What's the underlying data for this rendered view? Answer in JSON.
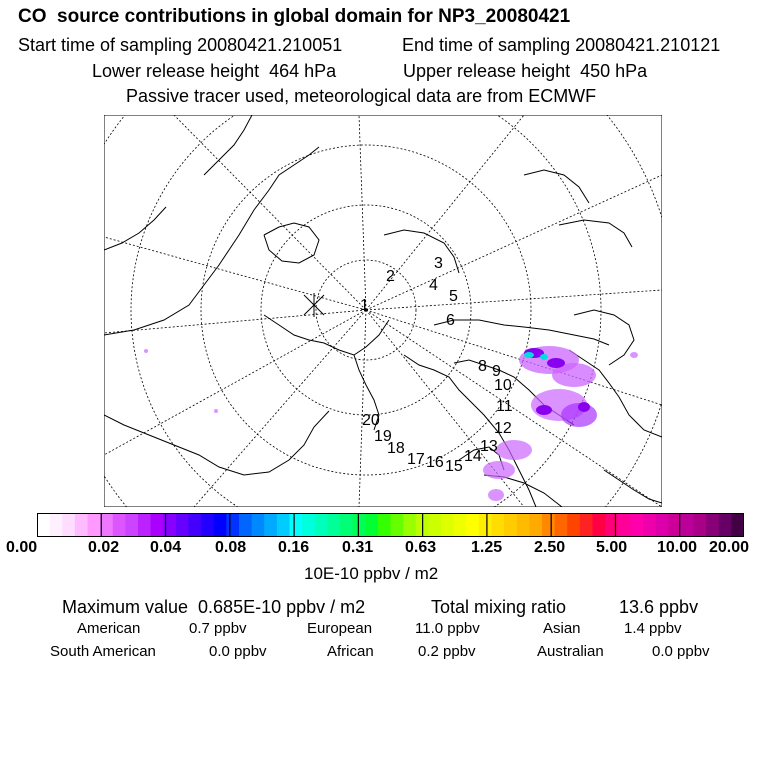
{
  "header": {
    "title": "CO  source contributions in global domain for NP3_20080421",
    "start_time": "Start time of sampling 20080421.210051",
    "end_time": "End time of sampling 20080421.210121",
    "lower_height": "Lower release height  464 hPa",
    "upper_height": "Upper release height  450 hPa",
    "tracer_note": "Passive tracer used, meteorological data are from ECMWF"
  },
  "map": {
    "trajectory_labels": [
      "1",
      "2",
      "3",
      "4",
      "5",
      "6",
      "8",
      "9",
      "10",
      "11",
      "12",
      "13",
      "14",
      "15",
      "16",
      "17",
      "18",
      "19",
      "20"
    ],
    "colors": {
      "coast": "#000000",
      "grid": "#000000",
      "plume_low": "#cc66ff",
      "plume_mid": "#8800ee",
      "plume_high": "#00dddd"
    }
  },
  "colorbar": {
    "labels": [
      "0.00",
      "0.02",
      "0.04",
      "0.08",
      "0.16",
      "0.31",
      "0.63",
      "1.25",
      "2.50",
      "5.00",
      "10.00",
      "20.00"
    ],
    "colors": [
      "#ffffff",
      "#fff0ff",
      "#ffddff",
      "#ffbbff",
      "#ff99ff",
      "#ee77ff",
      "#dd55ff",
      "#cc44ff",
      "#bb22ff",
      "#aa00ff",
      "#8800ff",
      "#6600ff",
      "#4400ff",
      "#2200ff",
      "#0000ff",
      "#0033ff",
      "#0066ff",
      "#0088ff",
      "#00aaff",
      "#00ccff",
      "#00ffff",
      "#00ffdd",
      "#00ffbb",
      "#00ff99",
      "#00ff77",
      "#00ff55",
      "#00ff33",
      "#33ff00",
      "#66ff00",
      "#99ff00",
      "#bbff00",
      "#ccff00",
      "#ddff00",
      "#eeff00",
      "#ffff00",
      "#ffee00",
      "#ffdd00",
      "#ffcc00",
      "#ffbb00",
      "#ffaa00",
      "#ff8800",
      "#ff6600",
      "#ff4400",
      "#ff2222",
      "#ff0044",
      "#ff0077",
      "#ff0099",
      "#ff00aa",
      "#ee00aa",
      "#dd00aa",
      "#cc0099",
      "#bb0099",
      "#aa0088",
      "#880077",
      "#660066",
      "#440044"
    ],
    "units": "10E-10 ppbv / m2"
  },
  "stats": {
    "maximum": "Maximum value  0.685E-10 ppbv / m2",
    "total": "Total mixing ratio",
    "total_value": "13.6 ppbv",
    "regions": [
      {
        "name": "American",
        "value": "0.7 ppbv"
      },
      {
        "name": "European",
        "value": "11.0 ppbv"
      },
      {
        "name": "Asian",
        "value": "1.4 ppbv"
      },
      {
        "name": "South American",
        "value": "0.0 ppbv"
      },
      {
        "name": "African",
        "value": "0.2 ppbv"
      },
      {
        "name": "Australian",
        "value": "0.0 ppbv"
      }
    ]
  }
}
